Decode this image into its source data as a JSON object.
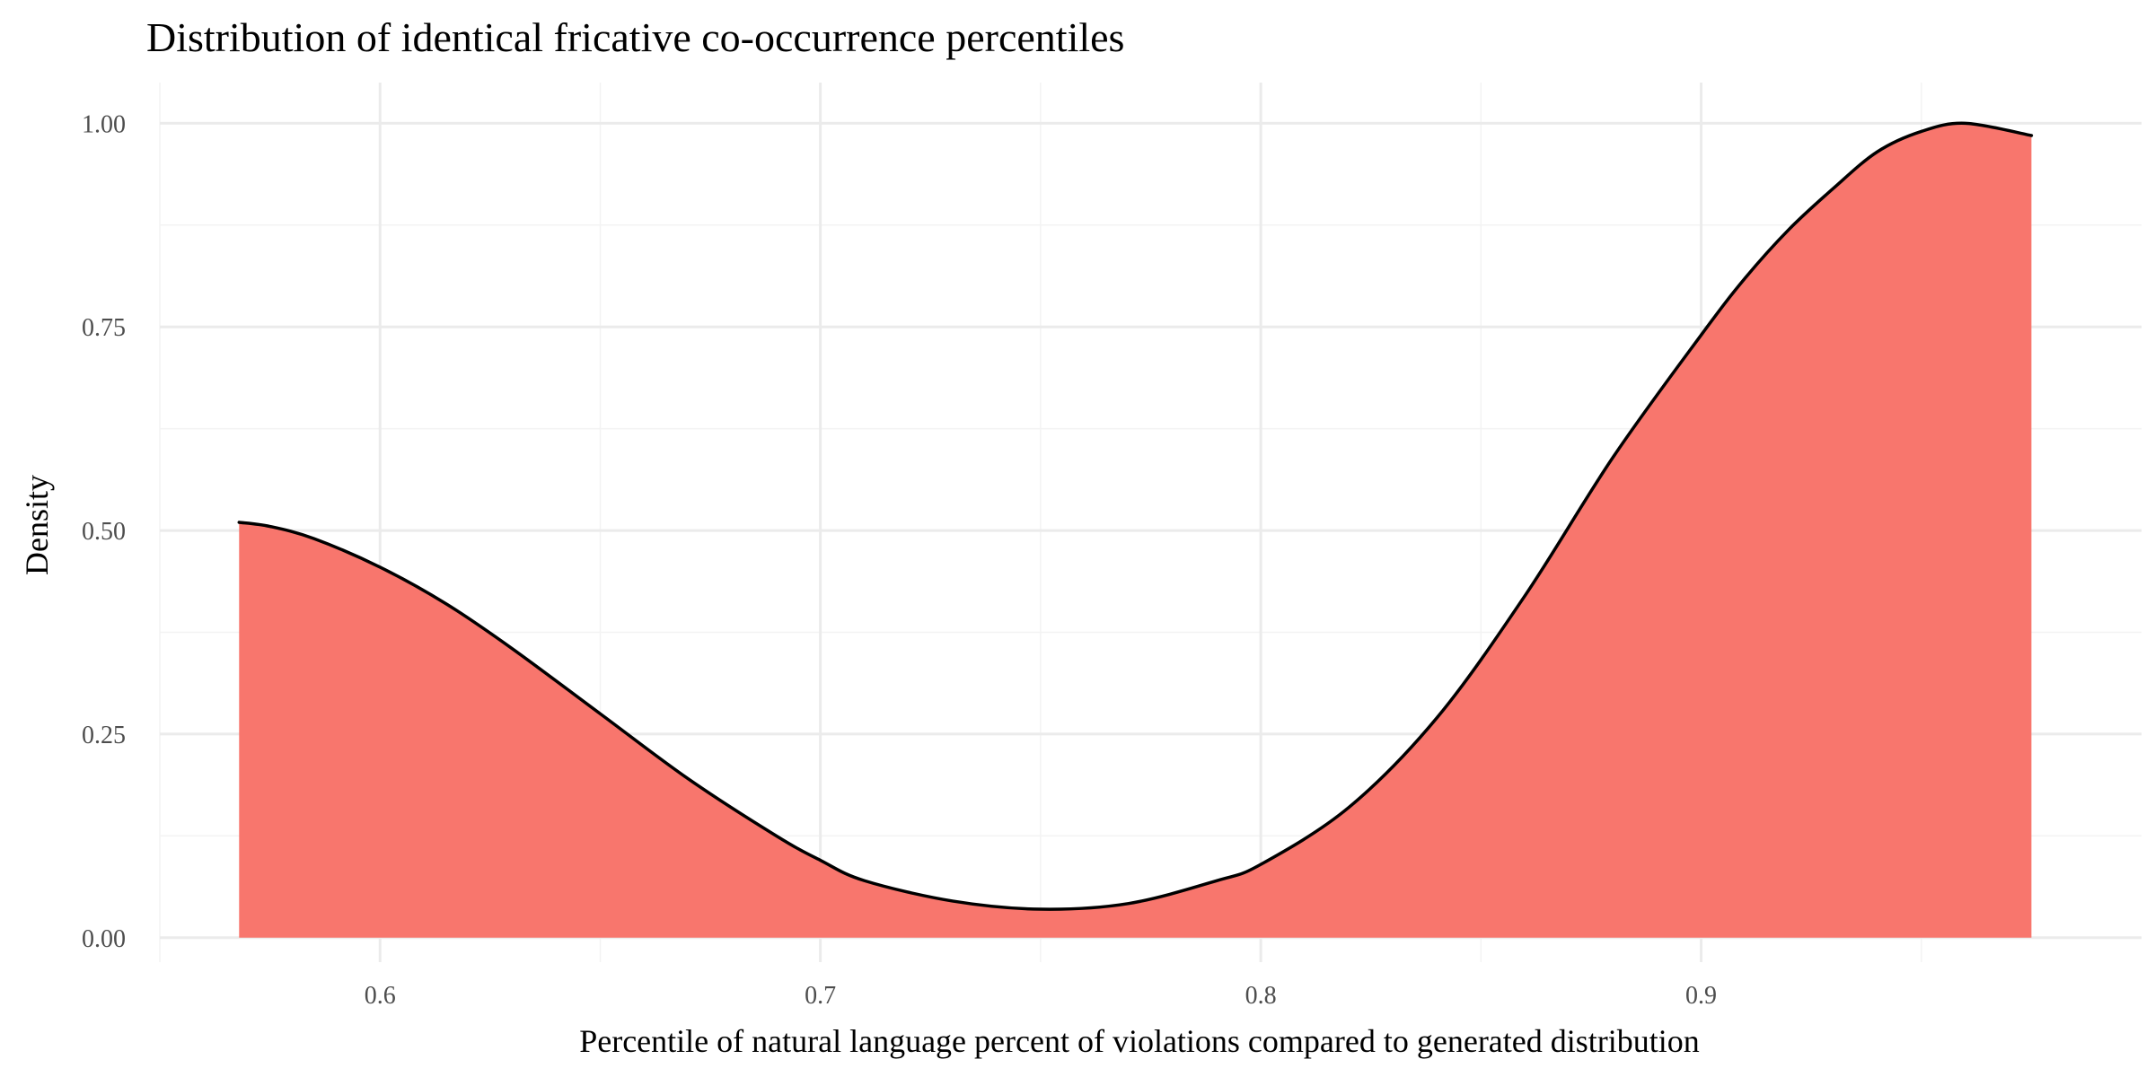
{
  "chart_data": {
    "type": "area",
    "title": "Distribution of identical fricative co-occurrence percentiles",
    "xlabel": "Percentile of natural language percent of violations compared to generated distribution",
    "ylabel": "Density",
    "xlim": [
      0.55,
      1.0
    ],
    "ylim": [
      -0.03,
      1.05
    ],
    "x_ticks": [
      0.6,
      0.7,
      0.8,
      0.9
    ],
    "x_tick_labels": [
      "0.6",
      "0.7",
      "0.8",
      "0.9"
    ],
    "y_ticks": [
      0.0,
      0.25,
      0.5,
      0.75,
      1.0
    ],
    "y_tick_labels": [
      "0.00",
      "0.25",
      "0.50",
      "0.75",
      "1.00"
    ],
    "grid": true,
    "legend": "none",
    "colors": {
      "fill": "#f8766d",
      "line": "#000000",
      "grid_major": "#ebebeb",
      "grid_minor": "#f3f3f3"
    },
    "series": [
      {
        "x": [
          0.568,
          0.575,
          0.585,
          0.6,
          0.615,
          0.63,
          0.65,
          0.67,
          0.69,
          0.7,
          0.71,
          0.73,
          0.75,
          0.77,
          0.79,
          0.8,
          0.82,
          0.84,
          0.86,
          0.88,
          0.9,
          0.91,
          0.92,
          0.93,
          0.94,
          0.95,
          0.96,
          0.975
        ],
        "y": [
          0.51,
          0.505,
          0.49,
          0.455,
          0.41,
          0.355,
          0.275,
          0.195,
          0.125,
          0.095,
          0.07,
          0.045,
          0.035,
          0.042,
          0.07,
          0.09,
          0.16,
          0.27,
          0.42,
          0.59,
          0.74,
          0.81,
          0.87,
          0.92,
          0.965,
          0.99,
          1.0,
          0.985
        ]
      }
    ]
  }
}
